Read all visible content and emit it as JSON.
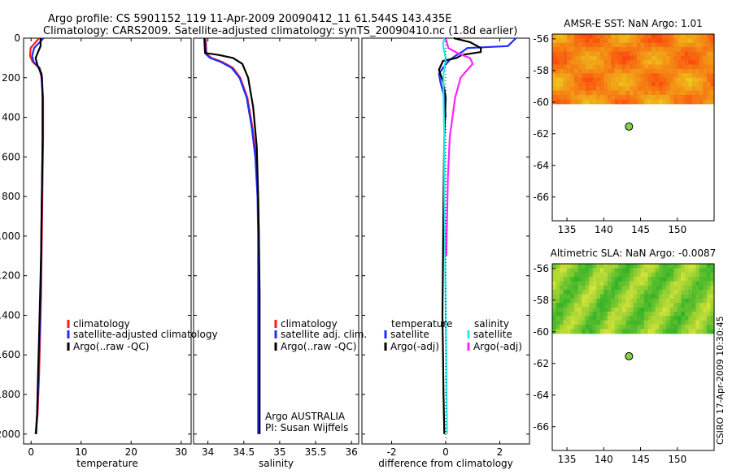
{
  "header": {
    "line1": "Argo profile: CS 5901152_119 11-Apr-2009 20090412_11 61.544S 143.435E",
    "line2": "Climatology: CARS2009. Satellite-adjusted climatology: synTS_20090410.nc (1.8d earlier)"
  },
  "side_label": "CSIRO 17-Apr-2009 10:30:45",
  "colors": {
    "climatology": "#ff1a1a",
    "satellite": "#1e2cff",
    "argo": "#000000",
    "sat_sal": "#22eaea",
    "argo_sal": "#ff22ff",
    "float": "#7fd43f"
  },
  "chart_data": [
    {
      "type": "line",
      "id": "temperature",
      "xlabel": "temperature",
      "xlim": [
        -1.5,
        32
      ],
      "xticks": [
        0,
        10,
        20,
        30
      ],
      "ylim": [
        2050,
        0
      ],
      "yticks": [
        0,
        200,
        400,
        600,
        800,
        1000,
        1200,
        1400,
        1600,
        1800,
        2000
      ],
      "legend": [
        "climatology",
        "satellite-adjusted climatology",
        "Argo(..raw -QC)"
      ],
      "series": [
        {
          "name": "climatology",
          "color": "climatology",
          "x": [
            1.6,
            -0.1,
            -0.2,
            0.3,
            1.6,
            2.1,
            2.4,
            2.4,
            2.3,
            2.2,
            2.1,
            2.0,
            1.8,
            1.6,
            1.3,
            0.9
          ],
          "y": [
            0,
            50,
            90,
            120,
            150,
            200,
            300,
            500,
            700,
            900,
            1100,
            1300,
            1500,
            1700,
            1900,
            2000
          ]
        },
        {
          "name": "satellite",
          "color": "satellite",
          "x": [
            2.5,
            0.6,
            0.2,
            0.5,
            1.7,
            2.2,
            2.3,
            2.3,
            2.2,
            2.1,
            2.0,
            1.9,
            1.7,
            1.5,
            1.2,
            0.9
          ],
          "y": [
            0,
            50,
            90,
            120,
            150,
            200,
            300,
            500,
            700,
            900,
            1100,
            1300,
            1500,
            1700,
            1900,
            2000
          ]
        },
        {
          "name": "argo",
          "color": "argo",
          "x": [
            1.9,
            1.9,
            1.4,
            0.9,
            1.3,
            2.1,
            2.3,
            2.3,
            2.2,
            2.1,
            2.0,
            1.8,
            1.6,
            1.4,
            1.2,
            1.0
          ],
          "y": [
            0,
            40,
            70,
            100,
            140,
            180,
            300,
            500,
            700,
            900,
            1100,
            1300,
            1500,
            1700,
            1900,
            2000
          ]
        }
      ]
    },
    {
      "type": "line",
      "id": "salinity",
      "xlabel": "salinity",
      "xlim": [
        33.8,
        36.1
      ],
      "xticks": [
        34,
        34.5,
        35,
        35.5,
        36
      ],
      "xticklabels": [
        "34",
        "34.5",
        "35",
        "35.5",
        "36"
      ],
      "ylim": [
        2050,
        0
      ],
      "legend": [
        "climatology",
        "satellite adj. clim.",
        "Argo(..raw -QC)"
      ],
      "annotation": [
        "Argo AUSTRALIA",
        "PI: Susan Wijffels"
      ],
      "series": [
        {
          "name": "climatology",
          "color": "climatology",
          "x": [
            33.97,
            33.98,
            34.05,
            34.2,
            34.35,
            34.45,
            34.55,
            34.62,
            34.67,
            34.7,
            34.71,
            34.71,
            34.71,
            34.71,
            34.71
          ],
          "y": [
            0,
            80,
            100,
            120,
            150,
            200,
            300,
            450,
            600,
            800,
            1000,
            1200,
            1500,
            1800,
            2000
          ]
        },
        {
          "name": "satellite",
          "color": "satellite",
          "x": [
            33.96,
            33.97,
            34.03,
            34.18,
            34.33,
            34.44,
            34.54,
            34.61,
            34.66,
            34.69,
            34.7,
            34.7,
            34.7,
            34.7,
            34.7
          ],
          "y": [
            0,
            80,
            100,
            120,
            150,
            200,
            300,
            450,
            600,
            800,
            1000,
            1200,
            1500,
            1800,
            2000
          ]
        },
        {
          "name": "argo",
          "color": "argo",
          "x": [
            33.95,
            33.96,
            34.15,
            34.35,
            34.48,
            34.56,
            34.63,
            34.68,
            34.7,
            34.71,
            34.72,
            34.72,
            34.72
          ],
          "y": [
            0,
            75,
            85,
            100,
            130,
            200,
            350,
            550,
            800,
            1000,
            1300,
            1700,
            2000
          ]
        }
      ]
    },
    {
      "type": "line",
      "id": "difference",
      "xlabel": "difference from climatology",
      "xlim": [
        -3.1,
        3.1
      ],
      "xticks": [
        -2,
        0,
        2
      ],
      "ylim": [
        2050,
        0
      ],
      "legend_temp": {
        "title": "temperature",
        "items": [
          "satellite",
          "Argo(-adj)"
        ]
      },
      "legend_sal": {
        "title": "salinity",
        "items": [
          "satellite",
          "Argo(-adj)"
        ]
      },
      "series": [
        {
          "name": "temp-satellite",
          "color": "satellite",
          "x": [
            2.6,
            2.3,
            0.8,
            0.6,
            0.35,
            0.15,
            0.02,
            -0.1,
            -0.25,
            -0.2,
            -0.05,
            0.0
          ],
          "y": [
            0,
            40,
            50,
            70,
            90,
            110,
            130,
            150,
            180,
            220,
            300,
            400
          ]
        },
        {
          "name": "temp-argo",
          "color": "argo",
          "x": [
            0.3,
            0.9,
            1.3,
            1.3,
            0.6,
            0.4,
            -0.1,
            -0.25,
            -0.1,
            0.0,
            -0.05,
            -0.08,
            -0.1,
            -0.12,
            -0.1,
            -0.08,
            -0.05
          ],
          "y": [
            0,
            20,
            50,
            70,
            85,
            100,
            115,
            160,
            220,
            300,
            500,
            800,
            1100,
            1400,
            1600,
            1800,
            2000
          ]
        },
        {
          "name": "sal-satellite",
          "color": "sat_sal",
          "x": [
            -0.05,
            -0.1,
            -0.05,
            0.0,
            -0.02,
            -0.08,
            -0.08,
            -0.05,
            -0.05,
            -0.02,
            0.0,
            0.02,
            0.03,
            0.04,
            0.05
          ],
          "y": [
            0,
            30,
            70,
            100,
            130,
            180,
            300,
            500,
            800,
            1100,
            1400,
            1600,
            1800,
            1900,
            2000
          ]
        },
        {
          "name": "sal-argo",
          "color": "argo_sal",
          "x": [
            0.0,
            0.1,
            0.5,
            0.9,
            1.0,
            0.8,
            0.55,
            0.45,
            0.35,
            0.25,
            0.15,
            0.08,
            0.05,
            0.02
          ],
          "y": [
            0,
            50,
            80,
            100,
            130,
            160,
            200,
            250,
            300,
            400,
            500,
            700,
            900,
            1100
          ]
        }
      ]
    },
    {
      "type": "heatmap",
      "id": "sst-map",
      "title": "AMSR-E SST: NaN Argo: 1.01",
      "xlim": [
        133,
        155
      ],
      "xticks": [
        135,
        140,
        145,
        150
      ],
      "ylim": [
        -67.5,
        -55.7
      ],
      "yticks": [
        -56,
        -58,
        -60,
        -62,
        -64,
        -66
      ],
      "data_extent_lat": [
        -60.1,
        -55.7
      ],
      "float": {
        "lon": 143.435,
        "lat": -61.544
      }
    },
    {
      "type": "heatmap",
      "id": "sla-map",
      "title": "Altimetric SLA: NaN Argo: -0.0087",
      "xlim": [
        133,
        155
      ],
      "xticks": [
        135,
        140,
        145,
        150
      ],
      "ylim": [
        -67.5,
        -55.7
      ],
      "yticks": [
        -56,
        -58,
        -60,
        -62,
        -64,
        -66
      ],
      "data_extent_lat": [
        -60.1,
        -55.7
      ],
      "float": {
        "lon": 143.435,
        "lat": -61.544
      }
    }
  ]
}
